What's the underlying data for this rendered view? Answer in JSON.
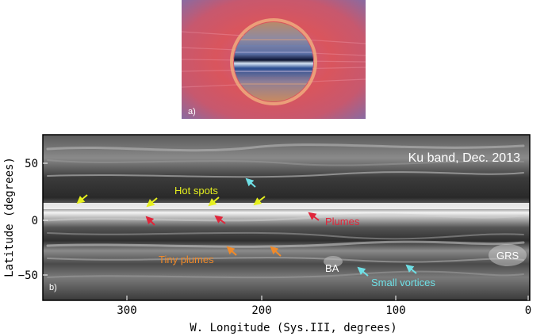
{
  "panel_a": {
    "label": "a)"
  },
  "panel_b": {
    "label": "b)",
    "title": "Ku band, Dec. 2013",
    "xlabel": "W. Longitude (Sys.III, degrees)",
    "ylabel": "Latitude (degrees)",
    "x_ticks": [
      "300",
      "200",
      "100",
      "0"
    ],
    "y_ticks": [
      "50",
      "0",
      "−50"
    ],
    "annotations": {
      "hot_spots": "Hot spots",
      "plumes": "Plumes",
      "tiny_plumes": "Tiny plumes",
      "small_vortices": "Small vortices",
      "ba": "BA",
      "grs": "GRS"
    },
    "colors": {
      "hot_spots": "#e6f01e",
      "plumes": "#e0253a",
      "tiny_plumes": "#f08a2a",
      "small_vortices": "#6fe0e6",
      "label_white": "#ffffff"
    }
  }
}
